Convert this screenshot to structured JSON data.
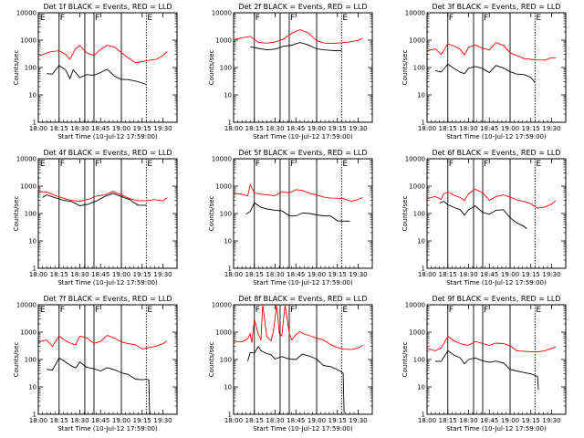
{
  "chart_data": [
    {
      "type": "line",
      "title": "Det  1f  BLACK = Events, RED = LLD",
      "xlabel": "Start Time (10-Jul-12 17:59:00)",
      "ylabel": "Counts/sec",
      "yscale": "log",
      "ylim": [
        1,
        10000
      ],
      "x_ticks": [
        "18:00",
        "18:15",
        "18:30",
        "18:45",
        "19:00",
        "19:15",
        "19:30"
      ],
      "y_ticks": [
        "1",
        "10",
        "100",
        "1000",
        "10000"
      ],
      "markers": [
        "E",
        "F",
        "F",
        "E"
      ],
      "series": [
        {
          "name": "LLD",
          "color": "#ff0000",
          "x": [
            18.0,
            18.13,
            18.25,
            18.33,
            18.38,
            18.45,
            18.5,
            18.58,
            18.67,
            18.75,
            18.83,
            18.92,
            19.0,
            19.08,
            19.17,
            19.25,
            19.33,
            19.42,
            19.5,
            19.55
          ],
          "y": [
            300,
            400,
            430,
            300,
            190,
            450,
            550,
            400,
            300,
            480,
            650,
            530,
            320,
            200,
            170,
            180,
            190,
            200,
            260,
            350
          ]
        },
        {
          "name": "Events",
          "color": "#000000",
          "x": [
            18.1,
            18.17,
            18.25,
            18.33,
            18.38,
            18.42,
            18.5,
            18.58,
            18.67,
            18.75,
            18.83,
            18.92,
            19.0,
            19.08,
            19.17,
            19.25,
            19.3
          ],
          "y": [
            60,
            55,
            110,
            70,
            45,
            90,
            45,
            55,
            50,
            60,
            75,
            55,
            40,
            38,
            32,
            26,
            22
          ]
        }
      ]
    },
    {
      "type": "line",
      "title": "Det  2f  BLACK = Events, RED = LLD",
      "xlabel": "Start Time (10-Jul-12 17:59:00)",
      "ylabel": "Counts/sec",
      "yscale": "log",
      "ylim": [
        1,
        10000
      ],
      "x_ticks": [
        "18:00",
        "18:15",
        "18:30",
        "18:45",
        "19:00",
        "19:15",
        "19:30"
      ],
      "y_ticks": [
        "1",
        "10",
        "100",
        "1000",
        "10000"
      ],
      "markers": [
        "F",
        "F",
        "E"
      ],
      "series": [
        {
          "name": "LLD",
          "color": "#ff0000",
          "x": [
            18.0,
            18.1,
            18.2,
            18.3,
            18.4,
            18.5,
            18.6,
            18.7,
            18.8,
            18.9,
            19.0,
            19.1,
            19.2,
            19.3,
            19.4,
            19.5,
            19.55
          ],
          "y": [
            1000,
            1100,
            1200,
            950,
            850,
            900,
            1100,
            1700,
            2200,
            1600,
            1100,
            850,
            800,
            800,
            820,
            900,
            1000
          ]
        },
        {
          "name": "Events",
          "color": "#000000",
          "x": [
            18.2,
            18.3,
            18.4,
            18.5,
            18.6,
            18.7,
            18.8,
            18.9,
            19.0,
            19.1,
            19.2,
            19.3
          ],
          "y": [
            600,
            500,
            420,
            430,
            520,
            750,
            900,
            700,
            480,
            420,
            380,
            360
          ]
        }
      ]
    },
    {
      "type": "line",
      "title": "Det  3f  BLACK = Events, RED = LLD",
      "xlabel": "Start Time (10-Jul-12 17:59:00)",
      "ylabel": "Counts/sec",
      "yscale": "log",
      "ylim": [
        1,
        10000
      ],
      "x_ticks": [
        "18:00",
        "18:15",
        "18:30",
        "18:45",
        "19:00",
        "19:15",
        "19:30"
      ],
      "y_ticks": [
        "1",
        "10",
        "100",
        "1000",
        "10000"
      ],
      "markers": [
        "F",
        "F",
        "E"
      ],
      "series": [
        {
          "name": "LLD",
          "color": "#ff0000",
          "x": [
            18.0,
            18.1,
            18.17,
            18.25,
            18.33,
            18.4,
            18.45,
            18.5,
            18.58,
            18.67,
            18.75,
            18.83,
            18.92,
            19.0,
            19.08,
            19.17,
            19.25,
            19.33,
            19.42,
            19.5,
            19.55
          ],
          "y": [
            450,
            500,
            300,
            700,
            550,
            400,
            330,
            600,
            700,
            500,
            420,
            750,
            560,
            400,
            300,
            220,
            200,
            180,
            170,
            200,
            260
          ]
        },
        {
          "name": "Events",
          "color": "#000000",
          "x": [
            18.1,
            18.17,
            18.25,
            18.33,
            18.4,
            18.45,
            18.5,
            18.58,
            18.67,
            18.75,
            18.83,
            18.92,
            19.0,
            19.08,
            19.17,
            19.25,
            19.3
          ],
          "y": [
            70,
            60,
            150,
            100,
            70,
            60,
            90,
            100,
            80,
            75,
            130,
            100,
            70,
            55,
            50,
            38,
            32
          ]
        }
      ]
    },
    {
      "type": "line",
      "title": "Det  4f  BLACK = Events, RED = LLD",
      "xlabel": "Start Time (10-Jul-12 17:59:00)",
      "ylabel": "Counts/sec",
      "yscale": "log",
      "ylim": [
        1,
        10000
      ],
      "x_ticks": [
        "18:00",
        "18:15",
        "18:30",
        "18:45",
        "19:00",
        "19:15",
        "19:30"
      ],
      "y_ticks": [
        "1",
        "10",
        "100",
        "1000",
        "10000"
      ],
      "markers": [
        "E",
        "F",
        "F",
        "E"
      ],
      "series": [
        {
          "name": "LLD",
          "color": "#ff0000",
          "x": [
            18.0,
            18.1,
            18.2,
            18.3,
            18.4,
            18.5,
            18.6,
            18.7,
            18.8,
            18.9,
            19.0,
            19.1,
            19.2,
            19.3,
            19.4,
            19.5,
            19.55
          ],
          "y": [
            550,
            700,
            500,
            380,
            300,
            270,
            300,
            380,
            550,
            700,
            500,
            350,
            280,
            270,
            280,
            330,
            420
          ]
        },
        {
          "name": "Events",
          "color": "#000000",
          "x": [
            18.05,
            18.1,
            18.2,
            18.3,
            18.4,
            18.5,
            18.6,
            18.7,
            18.8,
            18.9,
            19.0,
            19.1,
            19.2,
            19.3
          ],
          "y": [
            400,
            480,
            360,
            280,
            240,
            220,
            240,
            300,
            420,
            520,
            380,
            280,
            230,
            220
          ]
        }
      ]
    },
    {
      "type": "line",
      "title": "Det  5f  BLACK = Events, RED = LLD",
      "xlabel": "Start Time (10-Jul-12 17:59:00)",
      "ylabel": "Counts/sec",
      "yscale": "log",
      "ylim": [
        1,
        10000
      ],
      "x_ticks": [
        "18:00",
        "18:15",
        "18:30",
        "18:45",
        "19:00",
        "19:15",
        "19:30"
      ],
      "y_ticks": [
        "1",
        "10",
        "100",
        "1000",
        "10000"
      ],
      "markers": [
        "F",
        "F",
        "E"
      ],
      "series": [
        {
          "name": "LLD",
          "color": "#ff0000",
          "x": [
            18.0,
            18.1,
            18.17,
            18.2,
            18.25,
            18.33,
            18.4,
            18.5,
            18.58,
            18.67,
            18.75,
            18.83,
            18.92,
            19.0,
            19.08,
            19.17,
            19.25,
            19.33,
            19.42,
            19.5,
            19.55
          ],
          "y": [
            550,
            480,
            400,
            1000,
            650,
            560,
            500,
            450,
            600,
            520,
            650,
            800,
            600,
            500,
            400,
            350,
            330,
            300,
            320,
            360,
            400
          ]
        },
        {
          "name": "Events",
          "color": "#000000",
          "x": [
            18.15,
            18.2,
            18.25,
            18.33,
            18.4,
            18.5,
            18.58,
            18.67,
            18.75,
            18.83,
            18.92,
            19.0,
            19.08,
            19.17,
            19.25,
            19.33,
            19.4
          ],
          "y": [
            110,
            130,
            260,
            170,
            140,
            120,
            110,
            95,
            90,
            110,
            100,
            85,
            75,
            70,
            62,
            58,
            55
          ]
        }
      ]
    },
    {
      "type": "line",
      "title": "Det  6f  BLACK = Events, RED = LLD",
      "xlabel": "Start Time (10-Jul-12 17:59:00)",
      "ylabel": "Counts/sec",
      "yscale": "log",
      "ylim": [
        1,
        10000
      ],
      "x_ticks": [
        "18:00",
        "18:15",
        "18:30",
        "18:45",
        "19:00",
        "19:15",
        "19:30"
      ],
      "y_ticks": [
        "1",
        "10",
        "100",
        "1000",
        "10000"
      ],
      "markers": [
        "F",
        "F",
        "E"
      ],
      "series": [
        {
          "name": "LLD",
          "color": "#ff0000",
          "x": [
            18.0,
            18.1,
            18.17,
            18.2,
            18.25,
            18.33,
            18.4,
            18.45,
            18.5,
            18.58,
            18.67,
            18.75,
            18.83,
            18.92,
            19.0,
            19.08,
            19.17,
            19.25,
            19.33,
            19.42,
            19.5,
            19.55
          ],
          "y": [
            350,
            400,
            300,
            450,
            700,
            500,
            400,
            300,
            500,
            700,
            500,
            350,
            450,
            500,
            400,
            300,
            250,
            200,
            180,
            190,
            230,
            300
          ]
        },
        {
          "name": "Events",
          "color": "#000000",
          "x": [
            18.15,
            18.2,
            18.25,
            18.33,
            18.4,
            18.45,
            18.5,
            18.58,
            18.67,
            18.75,
            18.83,
            18.92,
            19.0,
            19.08,
            19.17,
            19.2
          ],
          "y": [
            250,
            280,
            200,
            150,
            120,
            100,
            150,
            200,
            110,
            90,
            120,
            120,
            80,
            50,
            35,
            28
          ]
        }
      ]
    },
    {
      "type": "line",
      "title": "Det  7f  BLACK = Events, RED = LLD",
      "xlabel": "Start Time (10-Jul-12 17:59:00)",
      "ylabel": "Counts/sec",
      "yscale": "log",
      "ylim": [
        1,
        10000
      ],
      "x_ticks": [
        "18:00",
        "18:15",
        "18:30",
        "18:45",
        "19:00",
        "19:15",
        "19:30"
      ],
      "y_ticks": [
        "1",
        "10",
        "100",
        "1000",
        "10000"
      ],
      "markers": [
        "E",
        "F",
        "F",
        "E"
      ],
      "series": [
        {
          "name": "LLD",
          "color": "#ff0000",
          "x": [
            18.0,
            18.1,
            18.17,
            18.25,
            18.33,
            18.4,
            18.45,
            18.5,
            18.58,
            18.67,
            18.75,
            18.83,
            18.92,
            19.0,
            19.08,
            19.17,
            19.25,
            19.33,
            19.42,
            19.5,
            19.55
          ],
          "y": [
            400,
            450,
            350,
            800,
            500,
            380,
            330,
            650,
            550,
            450,
            500,
            800,
            600,
            420,
            350,
            300,
            280,
            300,
            320,
            380,
            450
          ]
        },
        {
          "name": "Events",
          "color": "#000000",
          "x": [
            18.1,
            18.17,
            18.25,
            18.33,
            18.4,
            18.45,
            18.5,
            18.58,
            18.67,
            18.75,
            18.83,
            18.92,
            19.0,
            19.08,
            19.17,
            19.25,
            19.3,
            19.33,
            19.34
          ],
          "y": [
            50,
            45,
            120,
            80,
            55,
            45,
            70,
            60,
            50,
            40,
            50,
            40,
            30,
            25,
            22,
            20,
            20,
            18,
            1
          ]
        }
      ]
    },
    {
      "type": "line",
      "title": "Det  8f  BLACK = Events, RED = LLD",
      "xlabel": "Start Time (10-Jul-12 17:59:00)",
      "ylabel": "Counts/sec",
      "yscale": "log",
      "ylim": [
        1,
        10000
      ],
      "x_ticks": [
        "18:00",
        "18:15",
        "18:30",
        "18:45",
        "19:00",
        "19:15",
        "19:30"
      ],
      "y_ticks": [
        "1",
        "10",
        "100",
        "1000",
        "10000"
      ],
      "markers": [
        "F",
        "F",
        "E"
      ],
      "series": [
        {
          "name": "LLD",
          "color": "#ff0000",
          "x": [
            18.0,
            18.1,
            18.17,
            18.2,
            18.22,
            18.25,
            18.3,
            18.33,
            18.35,
            18.4,
            18.45,
            18.48,
            18.52,
            18.55,
            18.58,
            18.62,
            18.67,
            18.7,
            18.75,
            18.8,
            18.83,
            18.92,
            19.0,
            19.08,
            19.17,
            19.25,
            19.33,
            19.42,
            19.5,
            19.55
          ],
          "y": [
            450,
            400,
            500,
            1000,
            450,
            3000,
            800,
            500,
            10000,
            600,
            550,
            1200,
            10000,
            900,
            700,
            10000,
            800,
            600,
            900,
            1100,
            900,
            700,
            550,
            450,
            400,
            300,
            250,
            230,
            250,
            300
          ]
        },
        {
          "name": "Events",
          "color": "#000000",
          "x": [
            18.17,
            18.2,
            18.25,
            18.3,
            18.33,
            18.4,
            18.45,
            18.5,
            18.58,
            18.67,
            18.75,
            18.83,
            18.92,
            19.0,
            19.08,
            19.17,
            19.25,
            19.3,
            19.32,
            19.33
          ],
          "y": [
            100,
            200,
            180,
            300,
            200,
            150,
            130,
            120,
            140,
            110,
            100,
            150,
            120,
            90,
            70,
            60,
            45,
            35,
            30,
            1
          ]
        }
      ]
    },
    {
      "type": "line",
      "title": "Det  9f  BLACK = Events, RED = LLD",
      "xlabel": "Start Time (10-Jul-12 17:59:00)",
      "ylabel": "Counts/sec",
      "yscale": "log",
      "ylim": [
        1,
        10000
      ],
      "x_ticks": [
        "18:00",
        "18:15",
        "18:30",
        "18:45",
        "19:00",
        "19:15",
        "19:30"
      ],
      "y_ticks": [
        "1",
        "10",
        "100",
        "1000",
        "10000"
      ],
      "markers": [
        "F",
        "F",
        "E"
      ],
      "series": [
        {
          "name": "LLD",
          "color": "#ff0000",
          "x": [
            18.0,
            18.1,
            18.17,
            18.2,
            18.25,
            18.33,
            18.4,
            18.45,
            18.5,
            18.58,
            18.67,
            18.75,
            18.83,
            18.92,
            19.0,
            19.08,
            19.17,
            19.25,
            19.33,
            19.42,
            19.5,
            19.55
          ],
          "y": [
            220,
            240,
            300,
            400,
            700,
            450,
            350,
            300,
            380,
            500,
            400,
            330,
            380,
            350,
            280,
            240,
            220,
            200,
            190,
            200,
            230,
            250
          ]
        },
        {
          "name": "Events",
          "color": "#000000",
          "x": [
            18.1,
            18.17,
            18.25,
            18.33,
            18.4,
            18.45,
            18.5,
            18.58,
            18.67,
            18.75,
            18.83,
            18.92,
            19.0,
            19.08,
            19.17,
            19.25,
            19.3,
            19.33,
            19.34
          ],
          "y": [
            90,
            85,
            200,
            130,
            100,
            80,
            110,
            120,
            90,
            75,
            80,
            65,
            50,
            42,
            35,
            30,
            25,
            22,
            7
          ]
        }
      ]
    }
  ]
}
